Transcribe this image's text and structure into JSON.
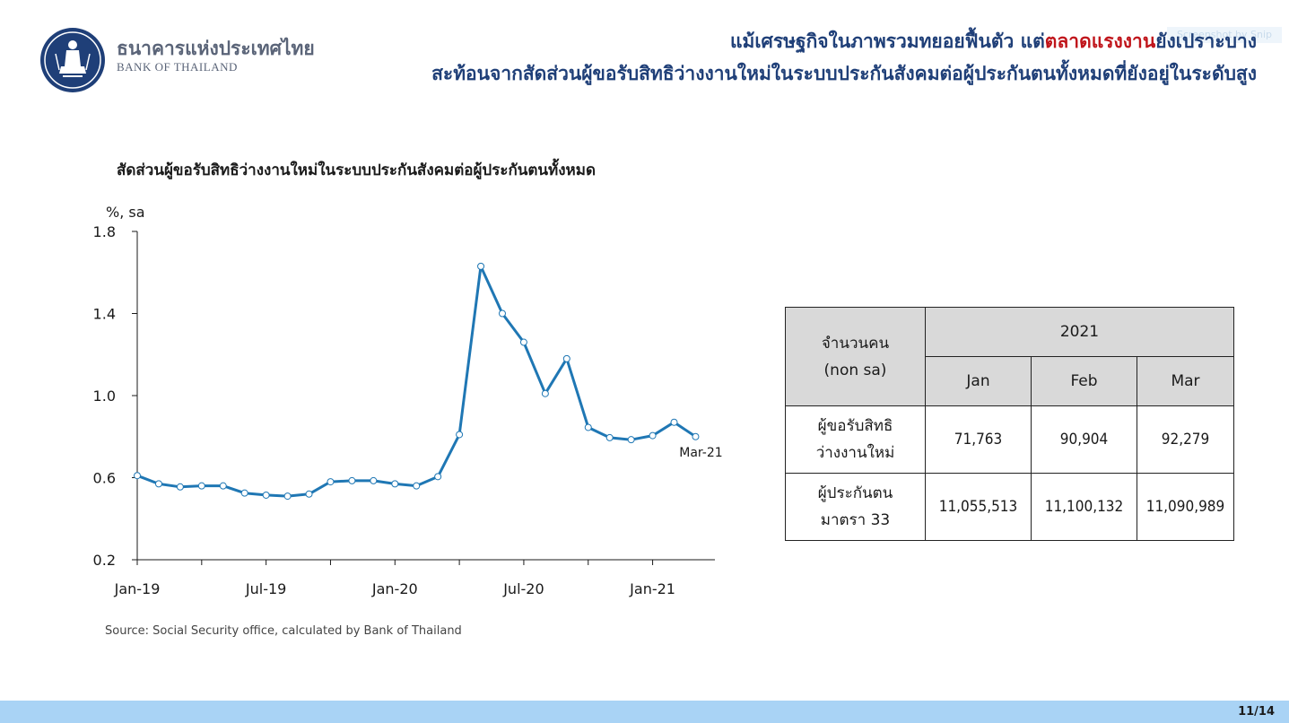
{
  "header": {
    "bank_name_th": "ธนาคารแห่งประเทศไทย",
    "bank_name_en": "BANK OF THAILAND",
    "headline_line1_pre": "แม้เศรษฐกิจในภาพรวมทยอยฟื้นตัว แต่",
    "headline_line1_highlight": "ตลาดแรงงาน",
    "headline_line1_post": "ยังเปราะบาง",
    "headline_line2": "สะท้อนจากสัดส่วนผู้ขอรับสิทธิว่างงานใหม่ในระบบประกันสังคมต่อผู้ประกันตนทั้งหมดที่ยังอยู่ในระดับสูง",
    "snip_watermark": "Screenshot by Snip",
    "highlight_color": "#c0151b",
    "title_color": "#1f3f78"
  },
  "chart_data": {
    "type": "line",
    "title": "สัดส่วนผู้ขอรับสิทธิว่างงานใหม่ในระบบประกันสังคมต่อผู้ประกันตนทั้งหมด",
    "ylabel": "%, sa",
    "xlabel": "",
    "ylim": [
      0.2,
      1.8
    ],
    "yticks": [
      "0.2",
      "0.6",
      "1.0",
      "1.4",
      "1.8"
    ],
    "x": [
      "Jan-19",
      "Feb-19",
      "Mar-19",
      "Apr-19",
      "May-19",
      "Jun-19",
      "Jul-19",
      "Aug-19",
      "Sep-19",
      "Oct-19",
      "Nov-19",
      "Dec-19",
      "Jan-20",
      "Feb-20",
      "Mar-20",
      "Apr-20",
      "May-20",
      "Jun-20",
      "Jul-20",
      "Aug-20",
      "Sep-20",
      "Oct-20",
      "Nov-20",
      "Dec-20",
      "Jan-21",
      "Feb-21",
      "Mar-21"
    ],
    "xtick_labels": [
      "Jan-19",
      "Jul-19",
      "Jan-20",
      "Jul-20",
      "Jan-21"
    ],
    "series": [
      {
        "values": [
          0.61,
          0.57,
          0.555,
          0.56,
          0.56,
          0.525,
          0.515,
          0.51,
          0.52,
          0.58,
          0.585,
          0.585,
          0.57,
          0.56,
          0.605,
          0.81,
          1.63,
          1.4,
          1.26,
          1.01,
          1.18,
          0.845,
          0.795,
          0.785,
          0.805,
          0.87,
          0.8
        ]
      }
    ],
    "annotation": "Mar-21",
    "line_color": "#1f77b4",
    "grid": false
  },
  "source": "Source: Social Security office, calculated by Bank of Thailand",
  "table": {
    "corner_line1": "จำนวนคน",
    "corner_line2": "(non sa)",
    "year": "2021",
    "months": [
      "Jan",
      "Feb",
      "Mar"
    ],
    "rows": [
      {
        "label_line1": "ผู้ขอรับสิทธิ",
        "label_line2": "ว่างงานใหม่",
        "values": [
          "71,763",
          "90,904",
          "92,279"
        ]
      },
      {
        "label_line1": "ผู้ประกันตน",
        "label_line2": "มาตรา 33",
        "values": [
          "11,055,513",
          "11,100,132",
          "11,090,989"
        ]
      }
    ]
  },
  "footer": {
    "page": "11/14",
    "bar_color": "#a9d3f5"
  }
}
